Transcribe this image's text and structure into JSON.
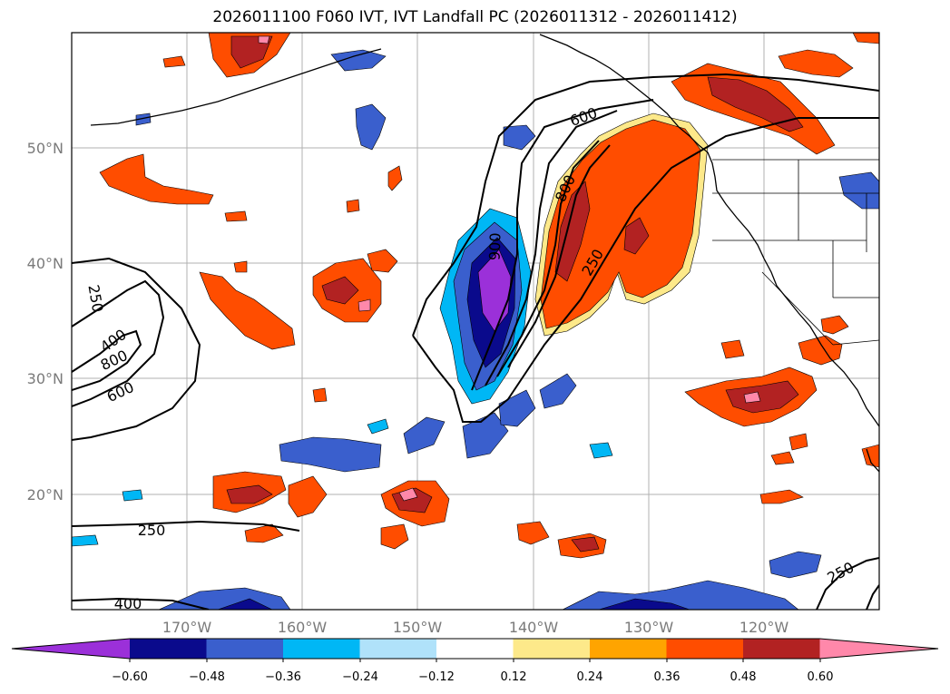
{
  "title": "2026011100 F060 IVT, IVT Landfall PC (2026011312 - 2026011412)",
  "lon_labels": [
    "170°W",
    "160°W",
    "150°W",
    "140°W",
    "130°W",
    "120°W"
  ],
  "lat_labels": [
    "50°N",
    "40°N",
    "30°N",
    "20°N"
  ],
  "contour_labels": [
    "600",
    "800",
    "250",
    "900",
    "250",
    "400",
    "800",
    "600",
    "250",
    "400",
    "250"
  ],
  "colorbar": {
    "ticks": [
      "−0.60",
      "−0.48",
      "−0.36",
      "−0.24",
      "−0.12",
      "0.12",
      "0.24",
      "0.36",
      "0.48",
      "0.60"
    ],
    "colors": [
      "#9b30d9",
      "#0a0a8c",
      "#3a5fcd",
      "#00b7f5",
      "#b0e2fa",
      "#ffffff",
      "#fde98a",
      "#ffa400",
      "#ff4d00",
      "#b22222",
      "#ff88aa"
    ]
  }
}
